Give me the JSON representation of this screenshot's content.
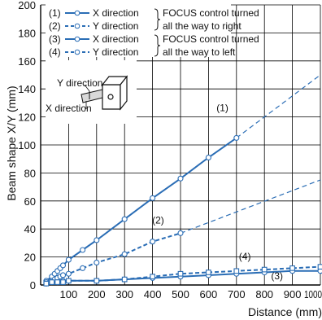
{
  "chart_data": {
    "type": "line",
    "title": "",
    "xlabel": "Distance (mm)",
    "ylabel": "Beam shape X/Y (mm)",
    "xlim": [
      0,
      1000
    ],
    "ylim": [
      0,
      200
    ],
    "x_ticks": [
      100,
      200,
      300,
      400,
      500,
      600,
      700,
      800,
      900,
      1000
    ],
    "y_ticks": [
      0,
      20,
      40,
      60,
      80,
      100,
      120,
      140,
      160,
      180,
      200
    ],
    "grid": true,
    "series": [
      {
        "name": "X direction",
        "curve_label": "(1)",
        "style": "solid",
        "x": [
          20,
          40,
          50,
          60,
          70,
          80,
          100,
          150,
          200,
          300,
          400,
          500,
          600,
          700
        ],
        "y": [
          3,
          6,
          8,
          10,
          12,
          14,
          18,
          25,
          32,
          47,
          62,
          76,
          91,
          105
        ],
        "extrapolation": {
          "x": [
            700,
            1000
          ],
          "y": [
            105,
            150
          ]
        }
      },
      {
        "name": "Y direction",
        "curve_label": "(2)",
        "style": "dashed",
        "x": [
          20,
          40,
          50,
          60,
          70,
          80,
          100,
          150,
          200,
          300,
          400,
          500
        ],
        "y": [
          2,
          3,
          4,
          5,
          6,
          7,
          8,
          12,
          16,
          22,
          31,
          37
        ],
        "extrapolation": {
          "x": [
            500,
            1000
          ],
          "y": [
            37,
            75
          ]
        }
      },
      {
        "name": "X direction",
        "curve_label": "(3)",
        "style": "solid",
        "x": [
          20,
          40,
          60,
          80,
          100,
          200,
          300,
          400,
          500,
          600,
          700,
          800,
          900,
          1000
        ],
        "y": [
          1,
          2,
          2,
          3,
          3,
          3,
          4,
          5,
          6,
          7,
          8,
          9,
          10,
          10
        ]
      },
      {
        "name": "Y direction",
        "curve_label": "(4)",
        "style": "dashed",
        "x": [
          20,
          40,
          60,
          80,
          100,
          200,
          300,
          400,
          500,
          600,
          700,
          800,
          900,
          1000
        ],
        "y": [
          1,
          2,
          2,
          2,
          3,
          3,
          4,
          6,
          8,
          9,
          10,
          11,
          12,
          13
        ]
      }
    ],
    "legend": {
      "placement": "top-left",
      "entries": [
        {
          "num": "(1)",
          "dir": "X direction",
          "style": "solid"
        },
        {
          "num": "(2)",
          "dir": "Y direction",
          "style": "dashed"
        },
        {
          "num": "(3)",
          "dir": "X direction",
          "style": "solid"
        },
        {
          "num": "(4)",
          "dir": "Y direction",
          "style": "dashed"
        }
      ],
      "group_notes": [
        {
          "line1": "FOCUS control turned",
          "line2": "all the way to right"
        },
        {
          "line1": "FOCUS control turned",
          "line2": "all the way to left"
        }
      ]
    },
    "inset": {
      "y_label": "Y direction",
      "x_label": "X direction"
    },
    "colors": {
      "line": "#2a6db5",
      "grid": "#000000",
      "axis": "#000000"
    }
  }
}
